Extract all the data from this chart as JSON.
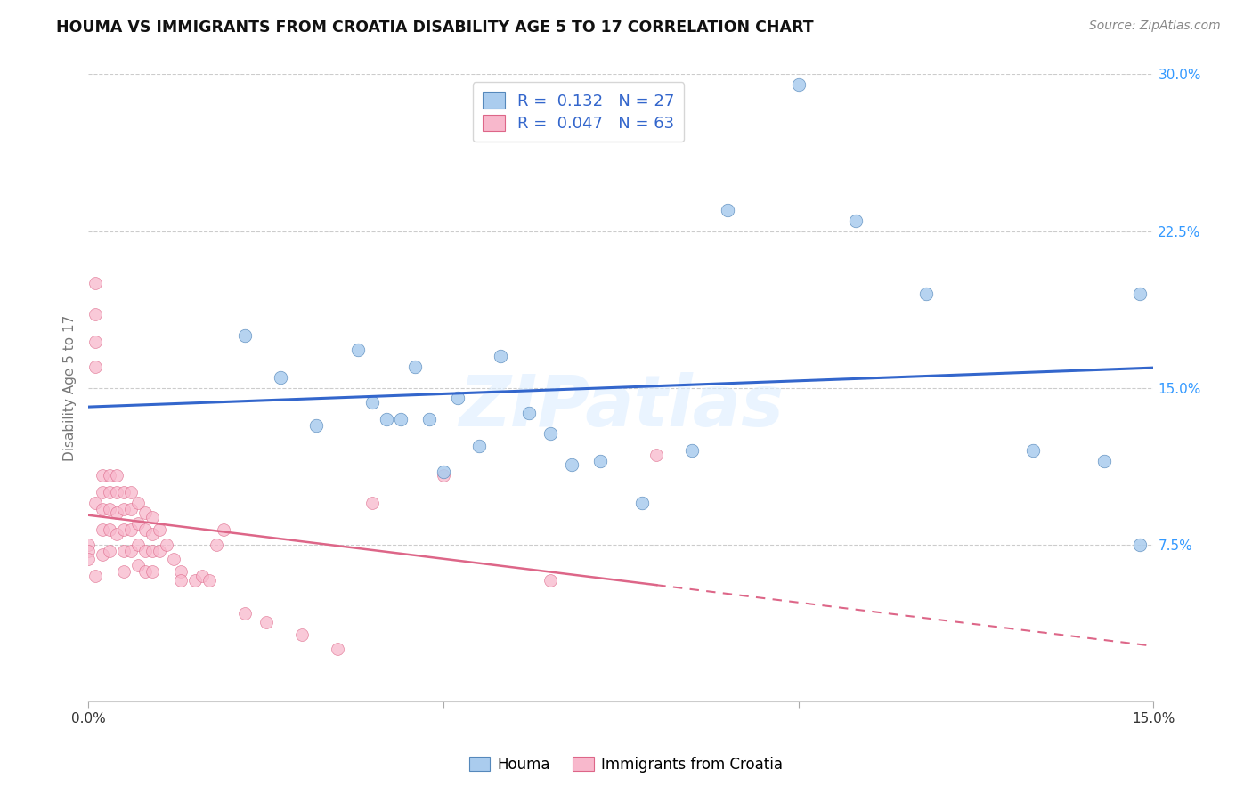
{
  "title": "HOUMA VS IMMIGRANTS FROM CROATIA DISABILITY AGE 5 TO 17 CORRELATION CHART",
  "source": "Source: ZipAtlas.com",
  "ylabel": "Disability Age 5 to 17",
  "xlim": [
    0.0,
    0.15
  ],
  "ylim": [
    0.0,
    0.3
  ],
  "houma_R": 0.132,
  "houma_N": 27,
  "croatia_R": 0.047,
  "croatia_N": 63,
  "houma_color": "#aaccee",
  "houma_edge_color": "#5588bb",
  "croatia_color": "#f8b8cc",
  "croatia_edge_color": "#dd6688",
  "houma_line_color": "#3366cc",
  "croatia_line_color": "#dd6688",
  "watermark": "ZIPatlas",
  "legend_label_1": "Houma",
  "legend_label_2": "Immigrants from Croatia",
  "houma_x": [
    0.022,
    0.027,
    0.032,
    0.038,
    0.04,
    0.042,
    0.044,
    0.046,
    0.048,
    0.05,
    0.052,
    0.055,
    0.058,
    0.062,
    0.065,
    0.068,
    0.072,
    0.078,
    0.085,
    0.09,
    0.1,
    0.108,
    0.118,
    0.133,
    0.143,
    0.148,
    0.148
  ],
  "houma_y": [
    0.175,
    0.155,
    0.132,
    0.168,
    0.143,
    0.135,
    0.135,
    0.16,
    0.135,
    0.11,
    0.145,
    0.122,
    0.165,
    0.138,
    0.128,
    0.113,
    0.115,
    0.095,
    0.12,
    0.235,
    0.295,
    0.23,
    0.195,
    0.12,
    0.115,
    0.075,
    0.195
  ],
  "croatia_x": [
    0.0,
    0.0,
    0.0,
    0.001,
    0.001,
    0.001,
    0.001,
    0.001,
    0.001,
    0.002,
    0.002,
    0.002,
    0.002,
    0.002,
    0.003,
    0.003,
    0.003,
    0.003,
    0.003,
    0.004,
    0.004,
    0.004,
    0.004,
    0.005,
    0.005,
    0.005,
    0.005,
    0.005,
    0.006,
    0.006,
    0.006,
    0.006,
    0.007,
    0.007,
    0.007,
    0.007,
    0.008,
    0.008,
    0.008,
    0.008,
    0.009,
    0.009,
    0.009,
    0.009,
    0.01,
    0.01,
    0.011,
    0.012,
    0.013,
    0.013,
    0.015,
    0.016,
    0.017,
    0.018,
    0.019,
    0.022,
    0.025,
    0.03,
    0.035,
    0.04,
    0.05,
    0.065,
    0.08
  ],
  "croatia_y": [
    0.075,
    0.072,
    0.068,
    0.2,
    0.185,
    0.172,
    0.16,
    0.095,
    0.06,
    0.108,
    0.1,
    0.092,
    0.082,
    0.07,
    0.108,
    0.1,
    0.092,
    0.082,
    0.072,
    0.108,
    0.1,
    0.09,
    0.08,
    0.1,
    0.092,
    0.082,
    0.072,
    0.062,
    0.1,
    0.092,
    0.082,
    0.072,
    0.095,
    0.085,
    0.075,
    0.065,
    0.09,
    0.082,
    0.072,
    0.062,
    0.088,
    0.08,
    0.072,
    0.062,
    0.082,
    0.072,
    0.075,
    0.068,
    0.062,
    0.058,
    0.058,
    0.06,
    0.058,
    0.075,
    0.082,
    0.042,
    0.038,
    0.032,
    0.025,
    0.095,
    0.108,
    0.058,
    0.118
  ]
}
